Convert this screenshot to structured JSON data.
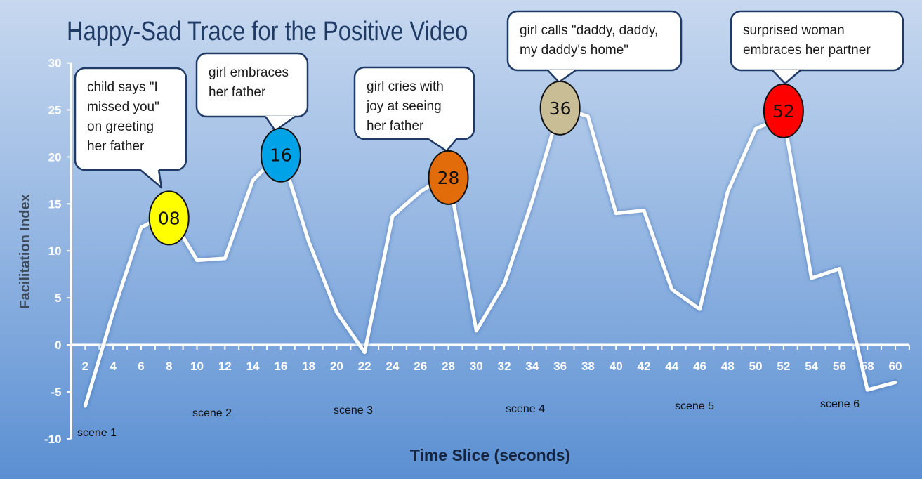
{
  "chart_data": {
    "type": "line",
    "title": "Happy-Sad Trace for the Positive Video",
    "xlabel": "Time  Slice (seconds)",
    "ylabel": "Facilitation Index",
    "xlim": [
      1,
      61
    ],
    "ylim": [
      -10,
      30
    ],
    "x_ticks": [
      2,
      4,
      6,
      8,
      10,
      12,
      14,
      16,
      18,
      20,
      22,
      24,
      26,
      28,
      30,
      32,
      34,
      36,
      38,
      40,
      42,
      44,
      46,
      48,
      50,
      52,
      54,
      56,
      58,
      60
    ],
    "y_ticks": [
      -10,
      -5,
      0,
      5,
      10,
      15,
      20,
      25,
      30
    ],
    "x_tick_labels": [
      "2",
      "4",
      "6",
      "8",
      "10",
      "12",
      "14",
      "16",
      "18",
      "20",
      "22",
      "24",
      "26",
      "28",
      "30",
      "32",
      "34",
      "36",
      "38",
      "40",
      "42",
      "44",
      "46",
      "48",
      "50",
      "52",
      "54",
      "56",
      "58",
      "60"
    ],
    "y_tick_labels": [
      "-10",
      "-5",
      "0",
      "5",
      "10",
      "15",
      "20",
      "25",
      "30"
    ],
    "x": [
      2,
      4,
      6,
      8,
      10,
      12,
      14,
      16,
      18,
      20,
      22,
      24,
      26,
      28,
      30,
      32,
      34,
      36,
      38,
      40,
      42,
      44,
      46,
      48,
      50,
      52,
      54,
      56,
      58,
      60
    ],
    "series": [
      {
        "values": [
          -6.5,
          3.5,
          12.5,
          14,
          9,
          9.2,
          17.5,
          20.5,
          11,
          3.5,
          -0.8,
          13.7,
          16.3,
          18.2,
          1.5,
          6.5,
          15.3,
          25.3,
          24.3,
          14,
          14.3,
          5.9,
          3.8,
          16.3,
          23,
          24.3,
          7.1,
          8.1,
          -4.8,
          -4
        ]
      }
    ],
    "markers": [
      {
        "label": "08",
        "x": 8,
        "y": 13.5,
        "color": "#ffff00"
      },
      {
        "label": "16",
        "x": 16,
        "y": 20.2,
        "color": "#00a2e8"
      },
      {
        "label": "28",
        "x": 28,
        "y": 17.8,
        "color": "#e36c0a"
      },
      {
        "label": "36",
        "x": 36,
        "y": 25.2,
        "color": "#c9bd96"
      },
      {
        "label": "52",
        "x": 52,
        "y": 24.9,
        "color": "#ff0000"
      }
    ],
    "callouts": [
      {
        "lines": [
          "child says \"I",
          "missed you\"",
          "on greeting",
          "her father"
        ]
      },
      {
        "lines": [
          "girl embraces",
          "her father"
        ]
      },
      {
        "lines": [
          "girl cries with",
          "joy at seeing",
          "her father"
        ]
      },
      {
        "lines": [
          "girl calls \"daddy, daddy,",
          "my daddy's home\""
        ]
      },
      {
        "lines": [
          "surprised woman",
          "embraces her partner"
        ]
      }
    ],
    "scenes": [
      {
        "label": "scene 1"
      },
      {
        "label": "scene 2"
      },
      {
        "label": "scene 3"
      },
      {
        "label": "scene 4"
      },
      {
        "label": "scene 5"
      },
      {
        "label": "scene 6"
      }
    ],
    "colors": {
      "line": "#ffffff",
      "axis": "#ffffff",
      "title": "#1f3a64",
      "callout_border": "#1f3a64",
      "callout_fill": "#ffffff"
    }
  }
}
